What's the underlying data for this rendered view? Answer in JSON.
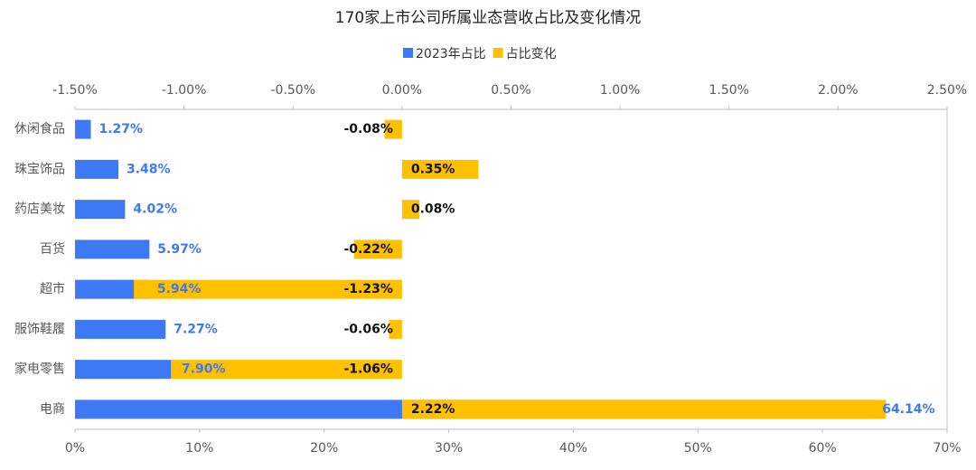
{
  "chart_data": {
    "type": "hbar-dual",
    "title": "170家上市公司所属业态营收占比及变化情况",
    "categories": [
      "休闲食品",
      "珠宝饰品",
      "药店美妆",
      "百货",
      "超市",
      "服饰鞋履",
      "家电零售",
      "电商"
    ],
    "series": [
      {
        "name": "2023年占比",
        "color": "#3d78f5",
        "axis": "x",
        "values": [
          1.27,
          3.48,
          4.02,
          5.97,
          5.94,
          7.27,
          7.9,
          64.14
        ],
        "value_labels": [
          "1.27%",
          "3.48%",
          "4.02%",
          "5.97%",
          "5.94%",
          "7.27%",
          "7.90%",
          "64.14%"
        ]
      },
      {
        "name": "占比变化",
        "color": "#ffc000",
        "axis": "x2",
        "values": [
          -0.08,
          0.35,
          0.08,
          -0.22,
          -1.23,
          -0.06,
          -1.06,
          2.22
        ],
        "value_labels": [
          "-0.08%",
          "0.35%",
          "0.08%",
          "-0.22%",
          "-1.23%",
          "-0.06%",
          "-1.06%",
          "2.22%"
        ]
      }
    ],
    "xlim": [
      0,
      70
    ],
    "xticks": [
      {
        "value": 0,
        "label": "0%"
      },
      {
        "value": 10,
        "label": "10%"
      },
      {
        "value": 20,
        "label": "20%"
      },
      {
        "value": 30,
        "label": "30%"
      },
      {
        "value": 40,
        "label": "40%"
      },
      {
        "value": 50,
        "label": "50%"
      },
      {
        "value": 60,
        "label": "60%"
      },
      {
        "value": 70,
        "label": "70%"
      }
    ],
    "x2lim": [
      -1.5,
      2.5
    ],
    "x2ticks": [
      {
        "value": -1.5,
        "label": "-1.50%"
      },
      {
        "value": -1.0,
        "label": "-1.00%"
      },
      {
        "value": -0.5,
        "label": "-0.50%"
      },
      {
        "value": 0,
        "label": "0.00%"
      },
      {
        "value": 0.5,
        "label": "0.50%"
      },
      {
        "value": 1.0,
        "label": "1.00%"
      },
      {
        "value": 1.5,
        "label": "1.50%"
      },
      {
        "value": 2.0,
        "label": "2.00%"
      },
      {
        "value": 2.5,
        "label": "2.50%"
      }
    ]
  }
}
